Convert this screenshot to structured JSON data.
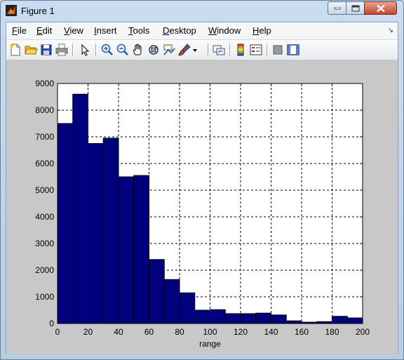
{
  "window": {
    "title": "Figure 1"
  },
  "menu": [
    {
      "label": "File",
      "u": "F",
      "rest": "ile"
    },
    {
      "label": "Edit",
      "u": "E",
      "rest": "dit"
    },
    {
      "label": "View",
      "u": "V",
      "rest": "iew"
    },
    {
      "label": "Insert",
      "u": "I",
      "rest": "nsert"
    },
    {
      "label": "Tools",
      "u": "T",
      "rest": "ools"
    },
    {
      "label": "Desktop",
      "u": "D",
      "rest": "esktop"
    },
    {
      "label": "Window",
      "u": "W",
      "rest": "indow"
    },
    {
      "label": "Help",
      "u": "H",
      "rest": "elp"
    }
  ],
  "toolbar_icons": [
    "new-figure-icon",
    "open-file-icon",
    "save-icon",
    "print-icon",
    "select-arrow-icon",
    "zoom-in-icon",
    "zoom-out-icon",
    "pan-hand-icon",
    "rotate-3d-icon",
    "data-cursor-icon",
    "brush-icon",
    "brush-dropdown-icon",
    "link-plot-icon",
    "colorbar-icon",
    "legend-icon",
    "hide-plot-tools-icon",
    "show-plot-tools-icon"
  ],
  "chart_data": {
    "type": "bar",
    "title": "",
    "xlabel": "range",
    "ylabel": "",
    "bin_edges": [
      0,
      10,
      20,
      30,
      40,
      50,
      60,
      70,
      80,
      90,
      100,
      110,
      120,
      130,
      140,
      150,
      160,
      170,
      180,
      190,
      200
    ],
    "values": [
      7500,
      8600,
      6750,
      6950,
      5500,
      5550,
      2400,
      1650,
      1150,
      500,
      520,
      370,
      370,
      390,
      320,
      100,
      50,
      70,
      270,
      210
    ],
    "xlim": [
      0,
      200
    ],
    "ylim": [
      0,
      9000
    ],
    "xticks": [
      0,
      20,
      40,
      60,
      80,
      100,
      120,
      140,
      160,
      180,
      200
    ],
    "yticks": [
      0,
      1000,
      2000,
      3000,
      4000,
      5000,
      6000,
      7000,
      8000,
      9000
    ],
    "grid": true,
    "bar_color": "#00007f"
  }
}
